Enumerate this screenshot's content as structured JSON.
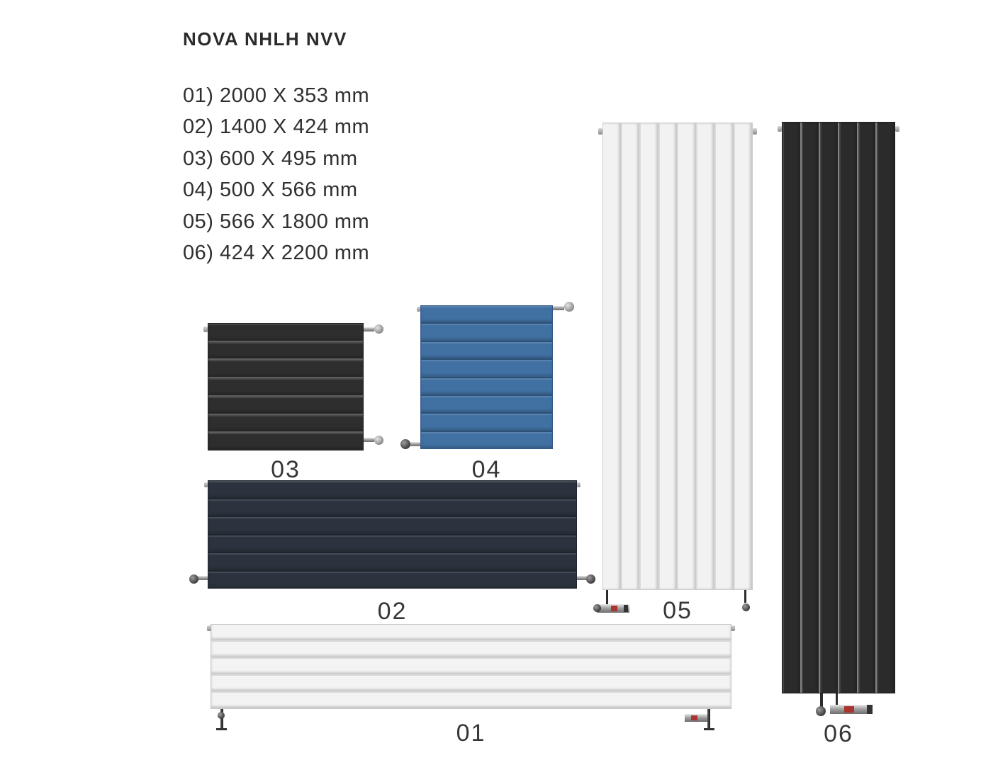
{
  "header": {
    "title": "NOVA NHLH NVV"
  },
  "size_list": {
    "items": [
      "01) 2000 X 353 mm",
      "02) 1400 X 424 mm",
      "03) 600 X 495 mm",
      "04) 500 X 566 mm",
      "05) 566 X 1800 mm",
      "06) 424 X 2200 mm"
    ]
  },
  "radiators": [
    {
      "caption": "01",
      "size_mm": "2000 X 353",
      "orientation": "horizontal",
      "slats": 5,
      "body_color": "#f3f3f3",
      "gap_color": "#d9d9d9",
      "edge_color": "#c9c9c9",
      "fittings": [
        "cap-top-left",
        "cap-top-right",
        "foot-left",
        "foot-right",
        "valve-bottom-right"
      ]
    },
    {
      "caption": "02",
      "size_mm": "1400 X 424",
      "orientation": "horizontal",
      "slats": 6,
      "body_color": "#2b343e",
      "gap_color": "#1d2630",
      "edge_color": "#20262e",
      "fittings": [
        "cap-top-left",
        "cap-top-right",
        "valve-bottom-left",
        "valve-bottom-right"
      ]
    },
    {
      "caption": "03",
      "size_mm": "600 X 495",
      "orientation": "horizontal",
      "slats": 7,
      "body_color": "#2e2e2e",
      "gap_color": "#5e5e5e",
      "edge_color": "#222222",
      "fittings": [
        "cap-top-left",
        "valve-top-right",
        "valve-bottom-right"
      ]
    },
    {
      "caption": "04",
      "size_mm": "500 X 566",
      "orientation": "horizontal",
      "slats": 8,
      "body_color": "#4171a3",
      "gap_color": "#2d5076",
      "edge_color": "#33598a",
      "fittings": [
        "cap-top-left",
        "valve-top-right",
        "valve-bottom-left"
      ]
    },
    {
      "caption": "05",
      "size_mm": "566 X 1800",
      "orientation": "vertical",
      "slats": 8,
      "body_color": "#f2f2f2",
      "gap_color": "#dbdbdb",
      "edge_color": "#cccccc",
      "fittings": [
        "cap-top-left",
        "cap-top-right",
        "valve-bottom-left",
        "valve-bottom-right"
      ]
    },
    {
      "caption": "06",
      "size_mm": "424 X 2200",
      "orientation": "vertical",
      "slats": 6,
      "body_color": "#2b2b2b",
      "gap_color": "#828282",
      "edge_color": "#1f1f1f",
      "fittings": [
        "cap-top-left",
        "cap-top-right",
        "valve-bottom-center",
        "valve-bottom-center-2"
      ]
    }
  ],
  "fitting_colors": {
    "chrome": "#a2a2a2",
    "dark": "#2c2c2c",
    "red_accent": "#aa3530"
  }
}
